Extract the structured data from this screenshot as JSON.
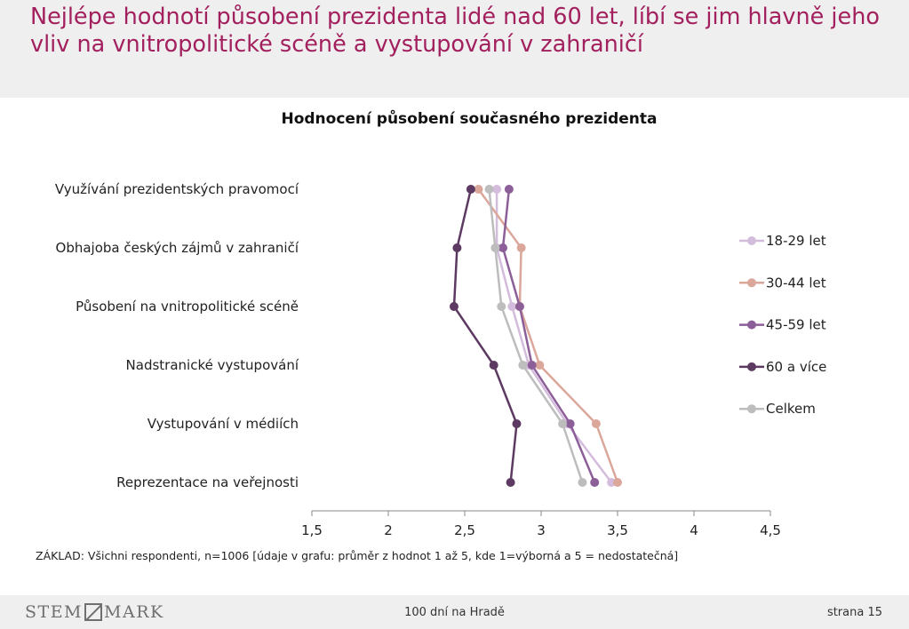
{
  "slide": {
    "headline": "Nejlépe hodnotí působení prezidenta lidé nad 60 let, líbí se jim hlavně jeho vliv na vnitropolitické scéně a vystupování v zahraničí",
    "note": "ZÁKLAD: Všichni respondenti, n=1006 [údaje v grafu: průměr z hodnot 1 až 5, kde 1=výborná a 5 = nedostatečná]",
    "footer_center": "100 dní na Hradě",
    "footer_right": "strana 15",
    "logo_left": "STEM",
    "logo_right": "MARK",
    "logo_icon": "stemmark-box-icon"
  },
  "chart_data": {
    "type": "line",
    "title": "Hodnocení působení současného prezidenta",
    "categories": [
      "Využívání prezidentských pravomocí",
      "Obhajoba českých zájmů v zahraničí",
      "Působení na vnitropolitické scéně",
      "Nadstranické vystupování",
      "Vystupování v médiích",
      "Reprezentace na veřejnosti"
    ],
    "xlim": [
      1.5,
      4.5
    ],
    "xticks": [
      1.5,
      2,
      2.5,
      3,
      3.5,
      4,
      4.5
    ],
    "xtick_labels": [
      "1,5",
      "2",
      "2,5",
      "3",
      "3,5",
      "4",
      "4,5"
    ],
    "legend_position": "right",
    "grid": false,
    "series": [
      {
        "name": "18-29 let",
        "color": "#d4bcdc",
        "values": [
          2.71,
          2.71,
          2.81,
          2.92,
          3.17,
          3.46
        ]
      },
      {
        "name": "30-44 let",
        "color": "#dba79b",
        "values": [
          2.59,
          2.87,
          2.86,
          2.99,
          3.36,
          3.5
        ]
      },
      {
        "name": "45-59 let",
        "color": "#8c5f98",
        "values": [
          2.79,
          2.75,
          2.86,
          2.94,
          3.19,
          3.35
        ]
      },
      {
        "name": "60 a více",
        "color": "#5d3a62",
        "values": [
          2.54,
          2.45,
          2.43,
          2.69,
          2.84,
          2.8
        ]
      },
      {
        "name": "Celkem",
        "color": "#bdbdbd",
        "values": [
          2.66,
          2.7,
          2.74,
          2.88,
          3.14,
          3.27
        ]
      }
    ]
  }
}
